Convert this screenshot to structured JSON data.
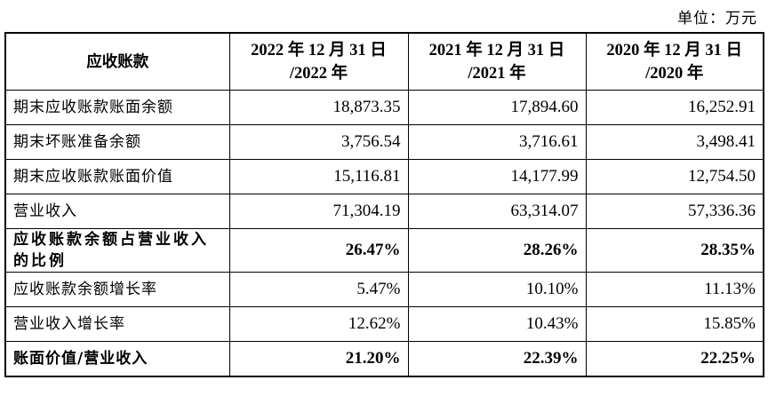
{
  "unit_label": "单位：万元",
  "header": {
    "label": "应收账款",
    "columns": [
      {
        "line1": "2022 年 12 月 31 日",
        "line2": "/2022 年"
      },
      {
        "line1": "2021 年 12 月 31 日",
        "line2": "/2021 年"
      },
      {
        "line1": "2020 年 12 月 31 日",
        "line2": "/2020 年"
      }
    ]
  },
  "rows": [
    {
      "label": "期末应收账款账面余额",
      "values": [
        "18,873.35",
        "17,894.60",
        "16,252.91"
      ],
      "bold": false
    },
    {
      "label": "期末坏账准备余额",
      "values": [
        "3,756.54",
        "3,716.61",
        "3,498.41"
      ],
      "bold": false
    },
    {
      "label": "期末应收账款账面价值",
      "values": [
        "15,116.81",
        "14,177.99",
        "12,754.50"
      ],
      "bold": false
    },
    {
      "label": "营业收入",
      "values": [
        "71,304.19",
        "63,314.07",
        "57,336.36"
      ],
      "bold": false
    },
    {
      "label": "应收账款余额占营业收入的比例",
      "values": [
        "26.47%",
        "28.26%",
        "28.35%"
      ],
      "bold": true
    },
    {
      "label": "应收账款余额增长率",
      "values": [
        "5.47%",
        "10.10%",
        "11.13%"
      ],
      "bold": false
    },
    {
      "label": "营业收入增长率",
      "values": [
        "12.62%",
        "10.43%",
        "15.85%"
      ],
      "bold": false
    },
    {
      "label": "账面价值/营业收入",
      "values": [
        "21.20%",
        "22.39%",
        "22.25%"
      ],
      "bold": true
    }
  ]
}
